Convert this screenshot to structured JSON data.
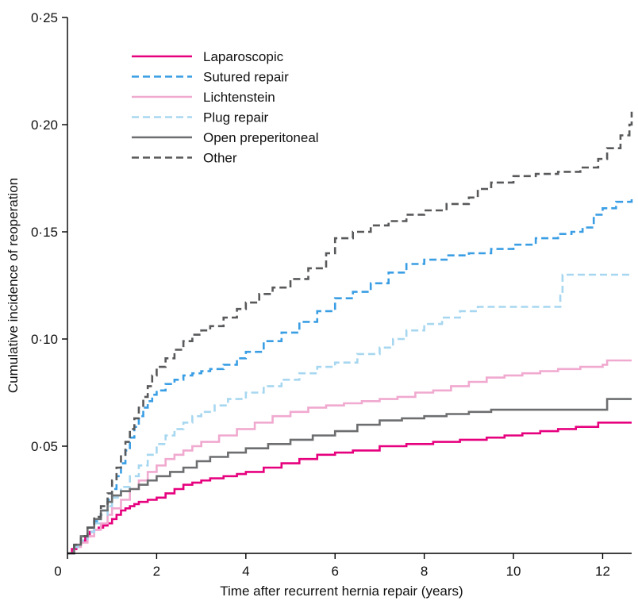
{
  "chart_data": {
    "type": "line",
    "title": "",
    "xlabel": "Time after recurrent hernia repair (years)",
    "ylabel": "Cumulative incidence of reoperation",
    "xlim": [
      0,
      12.65
    ],
    "ylim": [
      0,
      0.25
    ],
    "x_ticks": [
      {
        "value": 0,
        "label": "0"
      },
      {
        "value": 2,
        "label": "2"
      },
      {
        "value": 4,
        "label": "4"
      },
      {
        "value": 6,
        "label": "6"
      },
      {
        "value": 8,
        "label": "8"
      },
      {
        "value": 10,
        "label": "10"
      },
      {
        "value": 12,
        "label": "12"
      }
    ],
    "y_ticks": [
      {
        "value": 0.05,
        "label": "0·05"
      },
      {
        "value": 0.1,
        "label": "0·10"
      },
      {
        "value": 0.15,
        "label": "0·15"
      },
      {
        "value": 0.2,
        "label": "0·20"
      },
      {
        "value": 0.25,
        "label": "0·25"
      }
    ],
    "grid": false,
    "legend_position": "top-left",
    "step": true,
    "series": [
      {
        "name": "Laparoscopic",
        "color": "#e6007e",
        "dash": "solid",
        "x": [
          0,
          0.1,
          0.2,
          0.3,
          0.4,
          0.5,
          0.6,
          0.7,
          0.8,
          0.9,
          1.0,
          1.1,
          1.2,
          1.3,
          1.4,
          1.5,
          1.6,
          1.8,
          2.0,
          2.2,
          2.4,
          2.6,
          2.8,
          3.0,
          3.2,
          3.5,
          3.8,
          4.0,
          4.4,
          4.8,
          5.2,
          5.6,
          6.0,
          6.4,
          7.0,
          7.6,
          8.2,
          8.8,
          9.4,
          9.8,
          10.2,
          10.6,
          11.0,
          11.4,
          11.9,
          12.65
        ],
        "y": [
          0,
          0.002,
          0.004,
          0.006,
          0.008,
          0.01,
          0.011,
          0.012,
          0.013,
          0.014,
          0.016,
          0.018,
          0.02,
          0.021,
          0.022,
          0.023,
          0.024,
          0.025,
          0.026,
          0.028,
          0.03,
          0.032,
          0.033,
          0.034,
          0.035,
          0.036,
          0.037,
          0.038,
          0.04,
          0.042,
          0.044,
          0.046,
          0.047,
          0.048,
          0.05,
          0.051,
          0.052,
          0.053,
          0.054,
          0.055,
          0.056,
          0.057,
          0.058,
          0.059,
          0.061,
          0.061
        ]
      },
      {
        "name": "Sutured repair",
        "color": "#3a9ee4",
        "dash": "dashed",
        "x": [
          0,
          0.15,
          0.3,
          0.45,
          0.6,
          0.75,
          0.9,
          1.0,
          1.1,
          1.2,
          1.3,
          1.4,
          1.5,
          1.6,
          1.7,
          1.8,
          1.9,
          2.0,
          2.2,
          2.4,
          2.6,
          2.8,
          3.0,
          3.2,
          3.5,
          3.8,
          4.0,
          4.4,
          4.8,
          5.2,
          5.6,
          6.0,
          6.4,
          6.8,
          7.2,
          7.6,
          8.0,
          8.5,
          9.0,
          9.5,
          10.0,
          10.5,
          11.0,
          11.3,
          11.55,
          11.8,
          12.0,
          12.3,
          12.65
        ],
        "y": [
          0,
          0.003,
          0.006,
          0.01,
          0.015,
          0.02,
          0.025,
          0.03,
          0.036,
          0.042,
          0.048,
          0.054,
          0.059,
          0.064,
          0.068,
          0.071,
          0.074,
          0.076,
          0.079,
          0.081,
          0.083,
          0.084,
          0.085,
          0.086,
          0.088,
          0.091,
          0.094,
          0.099,
          0.103,
          0.108,
          0.113,
          0.119,
          0.122,
          0.126,
          0.131,
          0.135,
          0.137,
          0.139,
          0.14,
          0.142,
          0.144,
          0.147,
          0.149,
          0.15,
          0.152,
          0.158,
          0.161,
          0.164,
          0.166
        ]
      },
      {
        "name": "Lichtenstein",
        "color": "#f0a9cf",
        "dash": "solid",
        "x": [
          0,
          0.15,
          0.3,
          0.45,
          0.6,
          0.75,
          0.9,
          1.0,
          1.2,
          1.4,
          1.6,
          1.8,
          2.0,
          2.2,
          2.4,
          2.6,
          2.8,
          3.0,
          3.4,
          3.8,
          4.2,
          4.6,
          5.0,
          5.4,
          5.8,
          6.2,
          6.6,
          7.0,
          7.4,
          7.8,
          8.2,
          8.6,
          9.0,
          9.4,
          9.8,
          10.2,
          10.6,
          11.0,
          11.5,
          12.0,
          12.1,
          12.65
        ],
        "y": [
          0,
          0.003,
          0.005,
          0.008,
          0.011,
          0.014,
          0.018,
          0.021,
          0.025,
          0.03,
          0.034,
          0.038,
          0.041,
          0.044,
          0.046,
          0.048,
          0.05,
          0.052,
          0.055,
          0.058,
          0.061,
          0.064,
          0.066,
          0.068,
          0.069,
          0.07,
          0.071,
          0.072,
          0.073,
          0.075,
          0.076,
          0.078,
          0.08,
          0.082,
          0.083,
          0.084,
          0.085,
          0.086,
          0.087,
          0.088,
          0.09,
          0.09
        ]
      },
      {
        "name": "Plug repair",
        "color": "#a7d7f0",
        "dash": "dashed",
        "x": [
          0,
          0.15,
          0.3,
          0.45,
          0.6,
          0.75,
          0.9,
          1.0,
          1.2,
          1.4,
          1.6,
          1.8,
          2.0,
          2.2,
          2.4,
          2.6,
          2.8,
          3.0,
          3.3,
          3.6,
          4.0,
          4.4,
          4.8,
          5.2,
          5.6,
          6.0,
          6.5,
          7.0,
          7.3,
          7.6,
          8.0,
          8.4,
          8.8,
          9.2,
          9.6,
          10.0,
          10.5,
          11.05,
          11.1,
          12.65
        ],
        "y": [
          0,
          0.003,
          0.006,
          0.01,
          0.014,
          0.018,
          0.022,
          0.026,
          0.031,
          0.036,
          0.041,
          0.046,
          0.051,
          0.055,
          0.058,
          0.061,
          0.064,
          0.066,
          0.069,
          0.072,
          0.075,
          0.078,
          0.081,
          0.084,
          0.087,
          0.089,
          0.093,
          0.096,
          0.1,
          0.104,
          0.107,
          0.11,
          0.113,
          0.115,
          0.115,
          0.115,
          0.115,
          0.122,
          0.13,
          0.13
        ]
      },
      {
        "name": "Open preperitoneal",
        "color": "#6d6e70",
        "dash": "solid",
        "x": [
          0,
          0.15,
          0.3,
          0.45,
          0.6,
          0.75,
          0.9,
          1.0,
          1.2,
          1.4,
          1.6,
          1.8,
          2.0,
          2.3,
          2.6,
          2.9,
          3.2,
          3.6,
          4.0,
          4.5,
          5.0,
          5.5,
          6.0,
          6.5,
          7.0,
          7.5,
          8.0,
          8.5,
          9.0,
          9.5,
          10.0,
          11.0,
          12.0,
          12.1,
          12.65
        ],
        "y": [
          0,
          0.004,
          0.008,
          0.012,
          0.016,
          0.02,
          0.024,
          0.027,
          0.029,
          0.03,
          0.032,
          0.034,
          0.036,
          0.038,
          0.04,
          0.043,
          0.045,
          0.047,
          0.049,
          0.051,
          0.053,
          0.055,
          0.057,
          0.06,
          0.062,
          0.063,
          0.064,
          0.065,
          0.066,
          0.067,
          0.067,
          0.067,
          0.067,
          0.072,
          0.072
        ]
      },
      {
        "name": "Other",
        "color": "#58595b",
        "dash": "dashed",
        "x": [
          0,
          0.15,
          0.3,
          0.45,
          0.6,
          0.75,
          0.9,
          1.0,
          1.1,
          1.2,
          1.3,
          1.4,
          1.5,
          1.6,
          1.7,
          1.8,
          1.9,
          2.0,
          2.2,
          2.4,
          2.6,
          2.8,
          3.0,
          3.2,
          3.5,
          3.8,
          4.0,
          4.3,
          4.6,
          5.0,
          5.4,
          5.8,
          6.0,
          6.4,
          6.8,
          7.2,
          7.6,
          8.0,
          8.5,
          9.0,
          9.2,
          9.5,
          10.0,
          10.5,
          11.0,
          11.5,
          11.9,
          12.1,
          12.4,
          12.6,
          12.65
        ],
        "y": [
          0,
          0.004,
          0.008,
          0.012,
          0.017,
          0.022,
          0.028,
          0.034,
          0.04,
          0.046,
          0.052,
          0.058,
          0.063,
          0.068,
          0.073,
          0.078,
          0.083,
          0.087,
          0.091,
          0.095,
          0.099,
          0.102,
          0.104,
          0.106,
          0.11,
          0.114,
          0.117,
          0.121,
          0.124,
          0.128,
          0.133,
          0.14,
          0.147,
          0.15,
          0.153,
          0.155,
          0.158,
          0.16,
          0.163,
          0.166,
          0.17,
          0.173,
          0.176,
          0.177,
          0.178,
          0.18,
          0.184,
          0.189,
          0.195,
          0.2,
          0.206
        ]
      }
    ]
  }
}
